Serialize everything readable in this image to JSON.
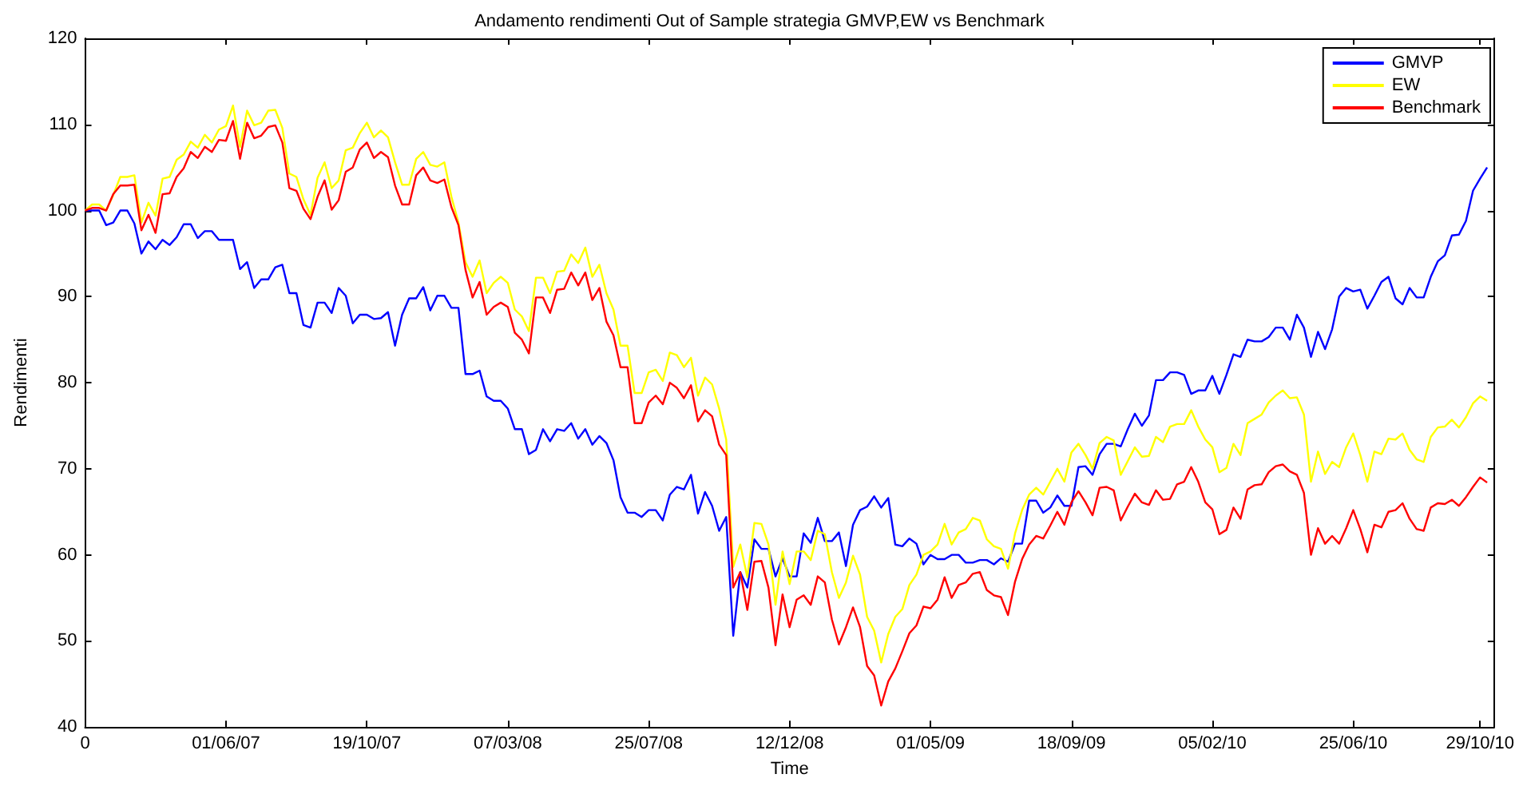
{
  "chart_data": {
    "type": "line",
    "title": "Andamento rendimenti Out of Sample strategia GMVP,EW vs Benchmark",
    "xlabel": "Time",
    "ylabel": "Rendimenti",
    "xlim": [
      "2007-01-12",
      "2010-11-12"
    ],
    "xticks": [
      {
        "value": "2007-01-12",
        "label": "0"
      },
      {
        "value": "2007-06-01",
        "label": "01/06/07"
      },
      {
        "value": "2007-10-19",
        "label": "19/10/07"
      },
      {
        "value": "2008-03-07",
        "label": "07/03/08"
      },
      {
        "value": "2008-07-25",
        "label": "25/07/08"
      },
      {
        "value": "2008-12-12",
        "label": "12/12/08"
      },
      {
        "value": "2009-05-01",
        "label": "01/05/09"
      },
      {
        "value": "2009-09-18",
        "label": "18/09/09"
      },
      {
        "value": "2010-02-05",
        "label": "05/02/10"
      },
      {
        "value": "2010-06-25",
        "label": "25/06/10"
      },
      {
        "value": "2010-10-29",
        "label": "29/10/10"
      }
    ],
    "ylim": [
      40,
      120
    ],
    "yticks": [
      40,
      50,
      60,
      70,
      80,
      90,
      100,
      110,
      120
    ],
    "grid": false,
    "legend": "top right",
    "marker": "none",
    "line_style": "solid",
    "x": [
      "2007-01-12",
      "2007-01-19",
      "2007-01-26",
      "2007-02-02",
      "2007-02-09",
      "2007-02-16",
      "2007-02-23",
      "2007-03-02",
      "2007-03-09",
      "2007-03-16",
      "2007-03-23",
      "2007-03-30",
      "2007-04-06",
      "2007-04-13",
      "2007-04-20",
      "2007-04-27",
      "2007-05-04",
      "2007-05-11",
      "2007-05-18",
      "2007-05-25",
      "2007-06-01",
      "2007-06-08",
      "2007-06-15",
      "2007-06-22",
      "2007-06-29",
      "2007-07-06",
      "2007-07-13",
      "2007-07-20",
      "2007-07-27",
      "2007-08-03",
      "2007-08-10",
      "2007-08-17",
      "2007-08-24",
      "2007-08-31",
      "2007-09-07",
      "2007-09-14",
      "2007-09-21",
      "2007-09-28",
      "2007-10-05",
      "2007-10-12",
      "2007-10-19",
      "2007-10-26",
      "2007-11-02",
      "2007-11-09",
      "2007-11-16",
      "2007-11-23",
      "2007-11-30",
      "2007-12-07",
      "2007-12-14",
      "2007-12-21",
      "2007-12-28",
      "2008-01-04",
      "2008-01-11",
      "2008-01-18",
      "2008-01-25",
      "2008-02-01",
      "2008-02-08",
      "2008-02-15",
      "2008-02-22",
      "2008-02-29",
      "2008-03-07",
      "2008-03-14",
      "2008-03-21",
      "2008-03-28",
      "2008-04-04",
      "2008-04-11",
      "2008-04-18",
      "2008-04-25",
      "2008-05-02",
      "2008-05-09",
      "2008-05-16",
      "2008-05-23",
      "2008-05-30",
      "2008-06-06",
      "2008-06-13",
      "2008-06-20",
      "2008-06-27",
      "2008-07-04",
      "2008-07-11",
      "2008-07-18",
      "2008-07-25",
      "2008-08-01",
      "2008-08-08",
      "2008-08-15",
      "2008-08-22",
      "2008-08-29",
      "2008-09-05",
      "2008-09-12",
      "2008-09-19",
      "2008-09-26",
      "2008-10-03",
      "2008-10-10",
      "2008-10-17",
      "2008-10-24",
      "2008-10-31",
      "2008-11-07",
      "2008-11-14",
      "2008-11-21",
      "2008-11-28",
      "2008-12-05",
      "2008-12-12",
      "2008-12-19",
      "2008-12-26",
      "2009-01-02",
      "2009-01-09",
      "2009-01-16",
      "2009-01-23",
      "2009-01-30",
      "2009-02-06",
      "2009-02-13",
      "2009-02-20",
      "2009-02-27",
      "2009-03-06",
      "2009-03-13",
      "2009-03-20",
      "2009-03-27",
      "2009-04-03",
      "2009-04-10",
      "2009-04-17",
      "2009-04-24",
      "2009-05-01",
      "2009-05-08",
      "2009-05-15",
      "2009-05-22",
      "2009-05-29",
      "2009-06-05",
      "2009-06-12",
      "2009-06-19",
      "2009-06-26",
      "2009-07-03",
      "2009-07-10",
      "2009-07-17",
      "2009-07-24",
      "2009-07-31",
      "2009-08-07",
      "2009-08-14",
      "2009-08-21",
      "2009-08-28",
      "2009-09-04",
      "2009-09-11",
      "2009-09-18",
      "2009-09-25",
      "2009-10-02",
      "2009-10-09",
      "2009-10-16",
      "2009-10-23",
      "2009-10-30",
      "2009-11-06",
      "2009-11-13",
      "2009-11-20",
      "2009-11-27",
      "2009-12-04",
      "2009-12-11",
      "2009-12-18",
      "2009-12-25",
      "2010-01-01",
      "2010-01-08",
      "2010-01-15",
      "2010-01-22",
      "2010-01-29",
      "2010-02-05",
      "2010-02-12",
      "2010-02-19",
      "2010-02-26",
      "2010-03-05",
      "2010-03-12",
      "2010-03-19",
      "2010-03-26",
      "2010-04-02",
      "2010-04-09",
      "2010-04-16",
      "2010-04-23",
      "2010-04-30",
      "2010-05-07",
      "2010-05-14",
      "2010-05-21",
      "2010-05-28",
      "2010-06-04",
      "2010-06-11",
      "2010-06-18",
      "2010-06-25",
      "2010-07-02",
      "2010-07-09",
      "2010-07-16",
      "2010-07-23",
      "2010-07-30",
      "2010-08-06",
      "2010-08-13",
      "2010-08-20",
      "2010-08-27",
      "2010-09-03",
      "2010-09-10",
      "2010-09-17",
      "2010-09-24",
      "2010-10-01",
      "2010-10-08",
      "2010-10-15",
      "2010-10-22",
      "2010-10-29",
      "2010-11-05"
    ],
    "series": [
      {
        "name": "GMVP",
        "color": "#0000ff",
        "values": [
          100,
          100,
          100,
          98.3,
          98.6,
          100,
          100,
          98.5,
          95,
          96.4,
          95.5,
          96.6,
          96,
          96.9,
          98.4,
          98.4,
          96.8,
          97.6,
          97.6,
          96.6,
          96.6,
          96.6,
          93.2,
          94,
          91,
          92,
          92,
          93.4,
          93.7,
          90.4,
          90.4,
          86.7,
          86.4,
          89.3,
          89.3,
          88.1,
          91,
          90.1,
          86.9,
          87.9,
          87.9,
          87.4,
          87.5,
          88.2,
          84.3,
          87.9,
          89.8,
          89.8,
          91.1,
          88.4,
          90.1,
          90.1,
          88.7,
          88.7,
          81,
          81,
          81.4,
          78.4,
          77.9,
          77.9,
          77,
          74.6,
          74.6,
          71.7,
          72.2,
          74.6,
          73.2,
          74.6,
          74.4,
          75.3,
          73.5,
          74.6,
          72.8,
          73.8,
          73,
          71,
          66.7,
          64.9,
          64.9,
          64.4,
          65.2,
          65.2,
          64,
          67,
          67.9,
          67.6,
          69.3,
          64.8,
          67.3,
          65.7,
          62.8,
          64.4,
          50.6,
          58,
          56.2,
          61.8,
          60.7,
          60.7,
          57.5,
          59.6,
          57.5,
          57.5,
          62.5,
          61.4,
          64.3,
          61.6,
          61.6,
          62.6,
          58.7,
          63.5,
          65.2,
          65.6,
          66.8,
          65.5,
          66.6,
          61.2,
          61,
          61.9,
          61.3,
          58.9,
          60,
          59.5,
          59.5,
          60,
          60,
          59.1,
          59.1,
          59.4,
          59.4,
          58.9,
          59.6,
          59.2,
          61.3,
          61.3,
          66.3,
          66.3,
          64.9,
          65.5,
          66.9,
          65.7,
          65.7,
          70.2,
          70.3,
          69.3,
          71.7,
          72.9,
          72.9,
          72.6,
          74.6,
          76.4,
          75,
          76.2,
          80.3,
          80.3,
          81.2,
          81.2,
          80.9,
          78.7,
          79.1,
          79.1,
          80.8,
          78.7,
          80.9,
          83.3,
          83,
          85,
          84.8,
          84.8,
          85.3,
          86.4,
          86.4,
          85,
          87.9,
          86.4,
          83,
          85.9,
          83.9,
          86.2,
          90,
          91,
          90.6,
          90.8,
          88.6,
          90.1,
          91.7,
          92.3,
          89.8,
          89.1,
          91,
          89.9,
          89.9,
          92.3,
          94.1,
          94.8,
          97.1,
          97.2,
          98.8,
          102.3,
          103.7,
          105
        ]
      },
      {
        "name": "EW",
        "color": "#ffff00",
        "values": [
          100,
          100.7,
          100.7,
          100,
          101.8,
          103.9,
          103.9,
          104.1,
          98.6,
          100.9,
          99.4,
          103.7,
          103.9,
          105.9,
          106.5,
          108,
          107.3,
          108.8,
          107.9,
          109.4,
          109.8,
          112.2,
          107.4,
          111.6,
          109.9,
          110.2,
          111.6,
          111.7,
          109.6,
          104.3,
          103.9,
          101.3,
          99.5,
          103.8,
          105.6,
          102.6,
          103.5,
          107,
          107.3,
          109,
          110.2,
          108.5,
          109.3,
          108.5,
          105.6,
          103,
          103,
          106,
          106.8,
          105.3,
          105.1,
          105.6,
          101.6,
          98.6,
          94,
          92.3,
          94.2,
          90.4,
          91.6,
          92.3,
          91.6,
          88.5,
          87.7,
          86,
          92.2,
          92.2,
          90.4,
          92.9,
          93,
          94.9,
          93.9,
          95.7,
          92.3,
          93.7,
          90.4,
          88.5,
          84.3,
          84.3,
          78.8,
          78.8,
          81.2,
          81.5,
          80.2,
          83.5,
          83.2,
          81.8,
          82.9,
          78.5,
          80.6,
          79.8,
          77,
          73.4,
          58.6,
          61.2,
          57.4,
          63.7,
          63.6,
          61.2,
          54.2,
          60.4,
          56.6,
          60.4,
          60.4,
          59.4,
          62.8,
          62.4,
          58,
          55,
          56.8,
          59.9,
          57.7,
          52.8,
          51.2,
          47.5,
          50.8,
          52.8,
          53.7,
          56.5,
          57.7,
          60,
          60.4,
          61.2,
          63.6,
          61.2,
          62.6,
          63,
          64.3,
          64,
          61.8,
          61,
          60.7,
          58.4,
          62.5,
          65.2,
          67,
          67.8,
          67,
          68.5,
          70,
          68.5,
          71.9,
          72.9,
          71.6,
          70,
          73,
          73.7,
          73.3,
          69.3,
          70.9,
          72.5,
          71.4,
          71.5,
          73.7,
          73.1,
          74.9,
          75.2,
          75.2,
          76.8,
          74.9,
          73.4,
          72.5,
          69.6,
          70.1,
          72.9,
          71.6,
          75.3,
          75.8,
          76.3,
          77.7,
          78.5,
          79.1,
          78.2,
          78.3,
          76.3,
          68.5,
          72,
          69.4,
          70.8,
          70.2,
          72.5,
          74.1,
          71.6,
          68.5,
          72,
          71.7,
          73.5,
          73.4,
          74.1,
          72.2,
          71.1,
          70.8,
          73.7,
          74.8,
          74.9,
          75.7,
          74.8,
          76,
          77.6,
          78.4,
          77.9
        ]
      },
      {
        "name": "Benchmark",
        "color": "#ff0000",
        "values": [
          100,
          100.3,
          100.3,
          100,
          101.9,
          102.9,
          102.9,
          103,
          97.7,
          99.5,
          97.4,
          101.9,
          102,
          103.9,
          104.9,
          106.8,
          106.1,
          107.4,
          106.8,
          108.2,
          108.1,
          110.4,
          106,
          110.2,
          108.4,
          108.7,
          109.7,
          109.9,
          107.9,
          102.6,
          102.3,
          100.2,
          99,
          101.6,
          103.5,
          100.1,
          101.2,
          104.5,
          105,
          107.1,
          107.9,
          106.1,
          106.8,
          106.2,
          102.9,
          100.7,
          100.7,
          104.1,
          105,
          103.5,
          103.2,
          103.6,
          100.4,
          98.3,
          93.1,
          89.9,
          91.7,
          87.9,
          88.8,
          89.3,
          88.8,
          85.8,
          85,
          83.4,
          89.9,
          89.9,
          88.1,
          90.8,
          90.9,
          92.8,
          91.3,
          92.8,
          89.6,
          91,
          87.1,
          85.5,
          81.8,
          81.8,
          75.3,
          75.3,
          77.7,
          78.5,
          77.5,
          80,
          79.4,
          78.2,
          79.7,
          75.5,
          76.8,
          76.1,
          72.8,
          71.6,
          56.2,
          58,
          53.6,
          59.2,
          59.3,
          56.2,
          49.5,
          55.4,
          51.6,
          54.8,
          55.3,
          54.2,
          57.5,
          56.8,
          52.5,
          49.6,
          51.6,
          53.9,
          51.6,
          47.1,
          46,
          42.5,
          45.3,
          46.8,
          48.8,
          50.9,
          51.8,
          54,
          53.8,
          54.8,
          57.4,
          55,
          56.5,
          56.8,
          57.8,
          58,
          55.9,
          55.3,
          55.1,
          53,
          56.9,
          59.5,
          61.2,
          62.2,
          61.9,
          63.4,
          65,
          63.5,
          66.1,
          67.4,
          66.1,
          64.6,
          67.8,
          67.9,
          67.5,
          64,
          65.6,
          67.1,
          66.1,
          65.8,
          67.5,
          66.4,
          66.5,
          68.2,
          68.5,
          70.2,
          68.5,
          66.1,
          65.3,
          62.4,
          62.9,
          65.5,
          64.2,
          67.6,
          68.1,
          68.2,
          69.6,
          70.3,
          70.5,
          69.7,
          69.3,
          67.2,
          60,
          63.1,
          61.3,
          62.2,
          61.3,
          63.1,
          65.2,
          63,
          60.3,
          63.5,
          63.2,
          65,
          65.2,
          66,
          64.2,
          63,
          62.8,
          65.5,
          66,
          65.9,
          66.4,
          65.7,
          66.7,
          67.9,
          69,
          68.4
        ]
      }
    ]
  }
}
